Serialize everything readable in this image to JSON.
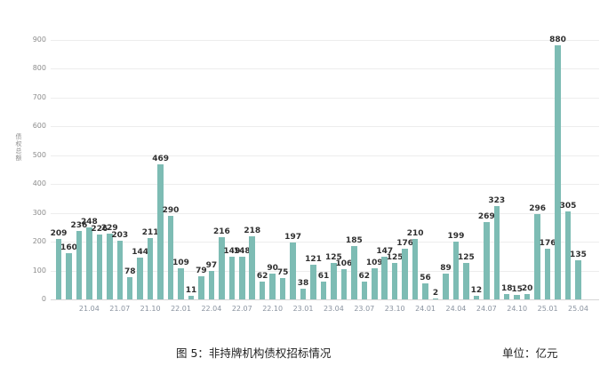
{
  "figure": {
    "caption": "图 5：非持牌机构债权招标情况",
    "unit_label": "单位：亿元"
  },
  "chart_data": {
    "type": "bar",
    "title": "图 5：非持牌机构债权招标情况",
    "xlabel": "",
    "ylabel": "债权总额",
    "unit": "亿元",
    "ylim": [
      0,
      900
    ],
    "yticks": [
      0,
      100,
      200,
      300,
      400,
      500,
      600,
      700,
      800,
      900
    ],
    "grid": "horizontal",
    "legend": "none",
    "bar_color": "#7dbcb4",
    "value_label_color": "#2f2f2f",
    "categories": [
      "21.01",
      "21.02",
      "21.03",
      "21.04",
      "21.05",
      "21.06",
      "21.07",
      "21.08",
      "21.09",
      "21.10",
      "21.11",
      "21.12",
      "22.01",
      "22.02",
      "22.03",
      "22.04",
      "22.05",
      "22.06",
      "22.07",
      "22.08",
      "22.09",
      "22.10",
      "22.11",
      "22.12",
      "23.01",
      "23.02",
      "23.03",
      "23.04",
      "23.05",
      "23.06",
      "23.07",
      "23.08",
      "23.09",
      "23.10",
      "23.11",
      "23.12",
      "24.01",
      "24.02",
      "24.03",
      "24.04",
      "24.05",
      "24.06",
      "24.07",
      "24.08",
      "24.09",
      "24.10",
      "24.11",
      "24.12",
      "25.01",
      "25.02",
      "25.03",
      "25.04"
    ],
    "values": [
      209,
      160,
      236,
      248,
      226,
      229,
      203,
      78,
      144,
      211,
      469,
      290,
      109,
      11,
      79,
      97,
      216,
      149,
      148,
      218,
      62,
      90,
      75,
      197,
      38,
      121,
      61,
      125,
      106,
      185,
      62,
      109,
      147,
      125,
      176,
      210,
      56,
      2,
      89,
      199,
      125,
      12,
      269,
      323,
      18,
      15,
      20,
      296,
      176,
      880,
      305,
      135
    ],
    "xtick_labels": [
      "21.04",
      "21.07",
      "21.10",
      "22.01",
      "22.04",
      "22.07",
      "22.10",
      "23.01",
      "23.04",
      "23.07",
      "23.10",
      "24.01",
      "24.04",
      "24.07",
      "24.10",
      "25.01",
      "25.04"
    ],
    "xtick_indices": [
      3,
      6,
      9,
      12,
      15,
      18,
      21,
      24,
      27,
      30,
      33,
      36,
      39,
      42,
      45,
      48,
      51
    ]
  }
}
